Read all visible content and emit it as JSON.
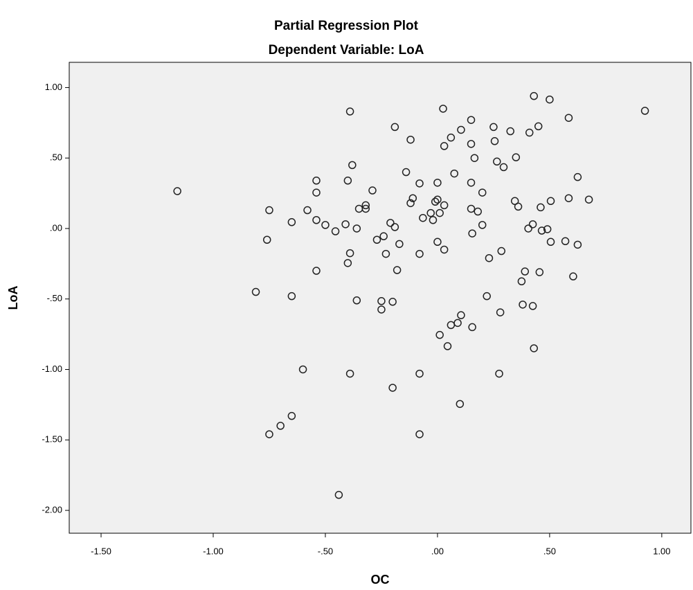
{
  "chart_data": {
    "type": "scatter",
    "title": "Partial Regression Plot",
    "subtitle": "Dependent Variable: LoA",
    "x_label": "OC",
    "y_label": "LoA",
    "color": "#222222",
    "grid": false,
    "xlim": [
      -1.642,
      1.13
    ],
    "ylim": [
      -2.162,
      1.179
    ],
    "xticks": [
      {
        "value": -1.5,
        "label": "-1.50"
      },
      {
        "value": -1,
        "label": "-1.00"
      },
      {
        "value": -0.5,
        "label": "-.50"
      },
      {
        "value": 0,
        "label": ".00"
      },
      {
        "value": 0.5,
        "label": ".50"
      },
      {
        "value": 1,
        "label": "1.00"
      }
    ],
    "yticks": [
      {
        "value": 1,
        "label": "1.00"
      },
      {
        "value": 0.5,
        "label": ".50"
      },
      {
        "value": 0,
        "label": ".00"
      },
      {
        "value": -0.5,
        "label": "-.50"
      },
      {
        "value": -1,
        "label": "-1.00"
      },
      {
        "value": -1.5,
        "label": "-1.50"
      },
      {
        "value": -2,
        "label": "-2.00"
      }
    ],
    "x": [
      -1.16,
      -0.81,
      -0.75,
      -0.76,
      -0.75,
      -0.7,
      -0.65,
      -0.65,
      -0.65,
      -0.6,
      -0.58,
      -0.54,
      -0.54,
      -0.54,
      -0.54,
      -0.39,
      -0.38,
      -0.4,
      -0.4,
      -0.39,
      -0.39,
      -0.41,
      -0.36,
      -0.36,
      -0.35,
      -0.32,
      -0.32,
      -0.29,
      -0.27,
      -0.25,
      -0.25,
      -0.24,
      -0.23,
      -0.21,
      -0.2,
      -0.2,
      -0.19,
      -0.19,
      -0.18,
      -0.17,
      -0.14,
      -0.12,
      -0.12,
      -0.11,
      -0.08,
      -0.08,
      -0.08,
      -0.08,
      -0.065,
      -0.03,
      -0.02,
      -0.01,
      0.0,
      0.0,
      0.01,
      0.0,
      0.01,
      0.025,
      0.03,
      0.03,
      0.03,
      0.045,
      0.06,
      0.06,
      0.075,
      0.09,
      0.105,
      0.1,
      0.105,
      0.15,
      0.15,
      0.15,
      0.15,
      0.155,
      0.155,
      0.165,
      0.18,
      0.2,
      0.2,
      0.22,
      0.23,
      0.25,
      0.255,
      0.265,
      0.275,
      0.28,
      0.285,
      0.295,
      0.325,
      0.35,
      0.345,
      0.36,
      0.375,
      0.38,
      0.39,
      0.405,
      0.41,
      0.425,
      0.425,
      0.43,
      0.43,
      0.45,
      0.455,
      0.46,
      0.465,
      0.49,
      0.5,
      0.505,
      0.505,
      0.57,
      0.585,
      0.585,
      0.605,
      0.625,
      0.625,
      0.675,
      0.925,
      -0.44,
      -0.455,
      -0.5
    ],
    "values": [
      0.265,
      -0.45,
      0.13,
      -0.08,
      -1.46,
      -1.4,
      -1.33,
      -0.48,
      0.045,
      -1.0,
      0.13,
      0.34,
      0.255,
      0.06,
      -0.3,
      0.83,
      0.45,
      0.34,
      -0.245,
      -0.175,
      -1.03,
      0.03,
      0.0,
      -0.51,
      0.14,
      0.165,
      0.14,
      0.27,
      -0.08,
      -0.515,
      -0.575,
      -0.055,
      -0.18,
      0.04,
      -0.52,
      -1.13,
      0.72,
      0.01,
      -0.295,
      -0.11,
      0.4,
      0.18,
      0.63,
      0.215,
      -0.18,
      0.32,
      -1.03,
      -1.46,
      0.075,
      0.11,
      0.06,
      0.19,
      0.325,
      0.205,
      0.11,
      -0.095,
      -0.755,
      0.85,
      0.585,
      0.165,
      -0.15,
      -0.835,
      0.645,
      -0.685,
      0.39,
      -0.67,
      -0.615,
      -1.245,
      0.7,
      0.77,
      0.6,
      0.325,
      0.14,
      -0.035,
      -0.7,
      0.5,
      0.12,
      0.025,
      0.255,
      -0.48,
      -0.21,
      0.72,
      0.62,
      0.475,
      -1.03,
      -0.595,
      -0.16,
      0.435,
      0.69,
      0.505,
      0.195,
      0.155,
      -0.375,
      -0.54,
      -0.305,
      0.0,
      0.68,
      0.03,
      -0.55,
      -0.85,
      0.94,
      0.725,
      -0.31,
      0.15,
      -0.015,
      -0.005,
      0.915,
      0.195,
      -0.095,
      -0.09,
      0.215,
      0.785,
      -0.34,
      0.365,
      -0.115,
      0.205,
      0.835,
      -1.89,
      -0.02,
      0.025
    ]
  }
}
